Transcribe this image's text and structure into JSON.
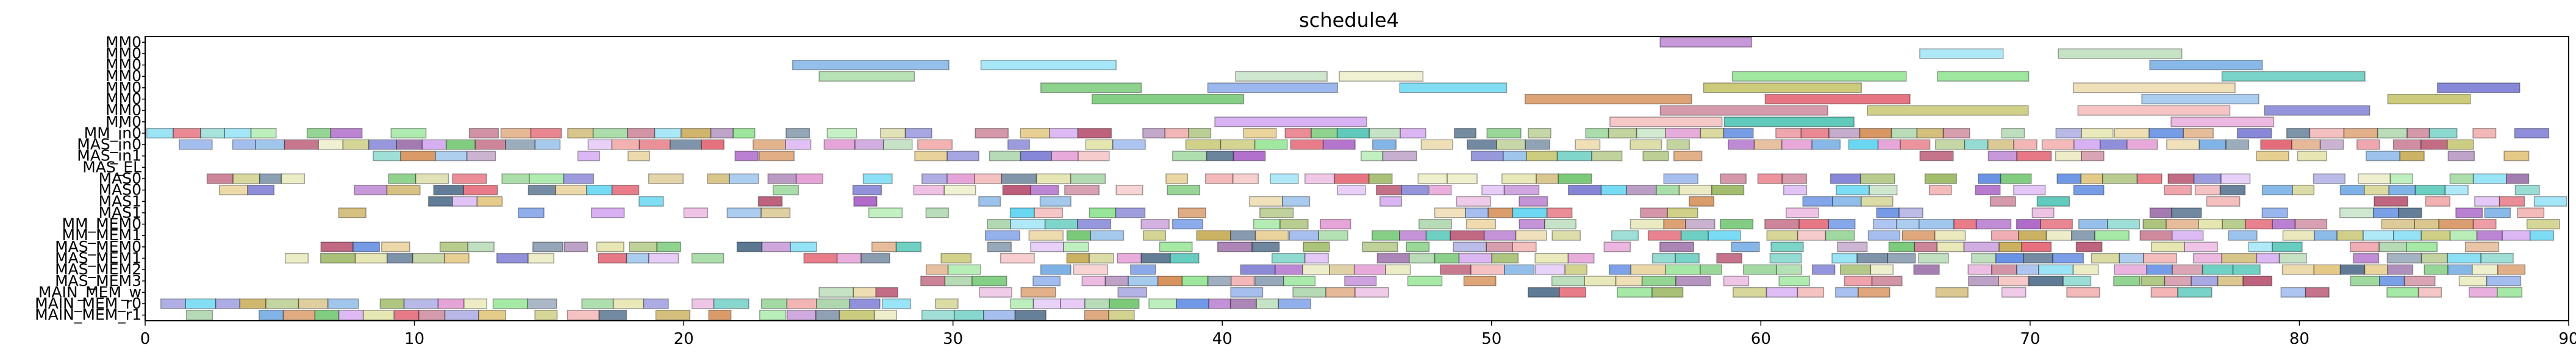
{
  "chart_data": {
    "type": "gantt",
    "title": "schedule4",
    "xlim": [
      0,
      90
    ],
    "x_ticks": [
      0,
      10,
      20,
      30,
      40,
      50,
      60,
      70,
      80,
      90
    ],
    "rows": [
      "MM0",
      "MM0",
      "MM0",
      "MM0",
      "MM0",
      "MM0",
      "MM0",
      "MM0",
      "MM_in0",
      "MAS_in0",
      "MAS_in1",
      "MAS_EL",
      "MAS0",
      "MAS0",
      "MAS1",
      "MAS1",
      "MM_MEM0",
      "MM_MEM1",
      "MAS_MEM0",
      "MAS_MEM1",
      "MAS_MEM2",
      "MAS_MEM3",
      "MAIN_MEM_w",
      "MAIN_MEM_r0",
      "MAIN_MEM_r1"
    ],
    "seed": 4
  }
}
